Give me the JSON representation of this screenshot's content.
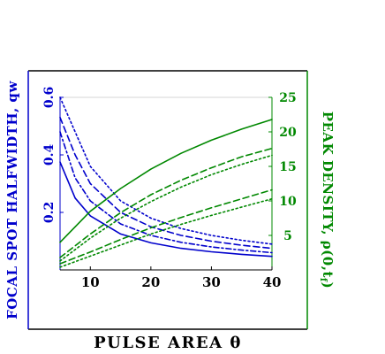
{
  "chart_data": {
    "type": "line",
    "xlabel": "PULSE AREA θ",
    "ylabel_left": "FOCAL SPOT HALFWIDTH, qw",
    "ylabel_right": "PEAK DENSITY, ρ(0,t",
    "ylabel_right_sub": "f",
    "ylabel_right_end": ")",
    "xlim": [
      5,
      40
    ],
    "xticks": [
      "10",
      "20",
      "30",
      "40"
    ],
    "xtick_values": [
      10,
      20,
      30,
      40
    ],
    "ylim_left": [
      0.0,
      0.6
    ],
    "yticks_left": [
      "0.2",
      "0.4",
      "0.6"
    ],
    "ytick_values_left": [
      0.2,
      0.4,
      0.6
    ],
    "ylim_right": [
      0,
      25
    ],
    "yticks_right": [
      "5",
      "10",
      "15",
      "20",
      "25"
    ],
    "ytick_values_right": [
      5,
      10,
      15,
      20,
      25
    ],
    "grid": false,
    "colors": {
      "left_axis": "#0000cc",
      "right_axis": "#008800",
      "frame": "#000000",
      "inner_frame": "#cccccc"
    },
    "series": [
      {
        "axis": "left",
        "style": "solid",
        "x": [
          5,
          7.5,
          10,
          15,
          20,
          25,
          30,
          35,
          40
        ],
        "y": [
          0.375,
          0.25,
          0.188,
          0.125,
          0.094,
          0.075,
          0.063,
          0.054,
          0.047
        ]
      },
      {
        "axis": "left",
        "style": "dashdot",
        "x": [
          5,
          7.5,
          10,
          15,
          20,
          25,
          30,
          35,
          40
        ],
        "y": [
          0.48,
          0.32,
          0.24,
          0.16,
          0.12,
          0.096,
          0.08,
          0.069,
          0.06
        ]
      },
      {
        "axis": "left",
        "style": "dashed",
        "x": [
          5,
          7.5,
          10,
          15,
          20,
          25,
          30,
          35,
          40
        ],
        "y": [
          0.53,
          0.4,
          0.3,
          0.2,
          0.15,
          0.12,
          0.1,
          0.086,
          0.075
        ]
      },
      {
        "axis": "left",
        "style": "dotted",
        "x": [
          5,
          7.5,
          10,
          15,
          20,
          25,
          30,
          35,
          40
        ],
        "y": [
          0.6,
          0.48,
          0.36,
          0.24,
          0.18,
          0.144,
          0.12,
          0.103,
          0.09
        ]
      },
      {
        "axis": "right",
        "style": "solid",
        "x": [
          5,
          10,
          15,
          20,
          25,
          30,
          35,
          40
        ],
        "y": [
          4.0,
          8.5,
          11.8,
          14.6,
          16.9,
          18.8,
          20.4,
          21.8
        ]
      },
      {
        "axis": "right",
        "style": "dashed",
        "x": [
          5,
          10,
          15,
          20,
          25,
          30,
          35,
          40
        ],
        "y": [
          1.8,
          5.2,
          8.3,
          10.9,
          13.0,
          14.8,
          16.4,
          17.6
        ]
      },
      {
        "axis": "right",
        "style": "dotted",
        "x": [
          5,
          10,
          15,
          20,
          25,
          30,
          35,
          40
        ],
        "y": [
          1.3,
          4.6,
          7.5,
          9.9,
          12.0,
          13.8,
          15.3,
          16.6
        ]
      },
      {
        "axis": "right",
        "style": "dashed",
        "x": [
          5,
          10,
          15,
          20,
          25,
          30,
          35,
          40
        ],
        "y": [
          0.9,
          2.6,
          4.4,
          6.1,
          7.6,
          9.0,
          10.3,
          11.6
        ]
      },
      {
        "axis": "right",
        "style": "dotted",
        "x": [
          5,
          10,
          15,
          20,
          25,
          30,
          35,
          40
        ],
        "y": [
          0.4,
          2.0,
          3.6,
          5.2,
          6.6,
          7.9,
          9.1,
          10.3
        ]
      }
    ]
  }
}
